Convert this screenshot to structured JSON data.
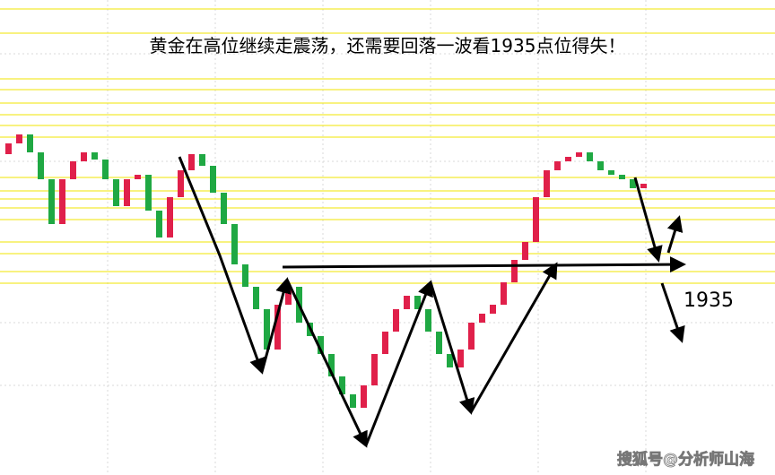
{
  "chart_data": {
    "type": "candlestick",
    "title": "黄金在高位继续走震荡，还需要回落一波看1935点位得失！",
    "annotation": "1935",
    "watermark": "搜狐号@分析师山海",
    "ylim": [
      1876.5,
      2009
    ],
    "up_color": "#e0204a",
    "down_color": "#1fa843",
    "open": [
      1966,
      1969,
      1971.5,
      1966.5,
      1959,
      1946.5,
      1959,
      1964,
      1966.5,
      1964.5,
      1959,
      1951.5,
      1959,
      1960.25,
      1950.25,
      1942.75,
      1954,
      1961.5,
      1966,
      1962.75,
      1955.25,
      1946.5,
      1935.25,
      1929,
      1922.75,
      1911.5,
      1924,
      1929,
      1919,
      1915.25,
      1910.25,
      1904,
      1899,
      1895.25,
      1901.5,
      1910.25,
      1916.5,
      1922.75,
      1926.5,
      1922.75,
      1916.5,
      1910.25,
      1906.5,
      1911.5,
      1919,
      1921.5,
      1924,
      1930.25,
      1936.5,
      1941.5,
      1954,
      1961.5,
      1964,
      1965.25,
      1966.5,
      1964,
      1961.5,
      1960.25,
      1959,
      1956.5
    ],
    "close": [
      1969,
      1971.5,
      1966.5,
      1959,
      1946.5,
      1959,
      1964,
      1966.5,
      1964.5,
      1959,
      1951.5,
      1959,
      1960.25,
      1950.25,
      1942.75,
      1954,
      1961.5,
      1966,
      1962.75,
      1955.25,
      1946.5,
      1935.25,
      1929,
      1922.75,
      1911.5,
      1924,
      1929,
      1919,
      1915.25,
      1910.25,
      1904,
      1899,
      1895.25,
      1901.5,
      1910.25,
      1916.5,
      1922.75,
      1926.5,
      1922.75,
      1916.5,
      1910.25,
      1906.5,
      1911.5,
      1919,
      1921.5,
      1924,
      1930.25,
      1936.5,
      1941.5,
      1954,
      1961.5,
      1964,
      1965.25,
      1966.5,
      1964,
      1961.5,
      1960.25,
      1959,
      1956.5,
      1957.75
    ]
  }
}
